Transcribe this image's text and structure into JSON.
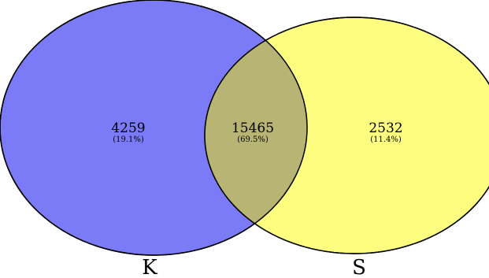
{
  "colors": {
    "set_k": "#7b7bf7",
    "set_s": "#fdfd7f",
    "overlap": "#b7b474",
    "outline": "#000000"
  },
  "sets": {
    "k": {
      "label": "K",
      "count": "4259",
      "percent": "(19.1%)"
    },
    "s": {
      "label": "S",
      "count": "2532",
      "percent": "(11.4%)"
    }
  },
  "overlap": {
    "count": "15465",
    "percent": "(69.5%)"
  }
}
